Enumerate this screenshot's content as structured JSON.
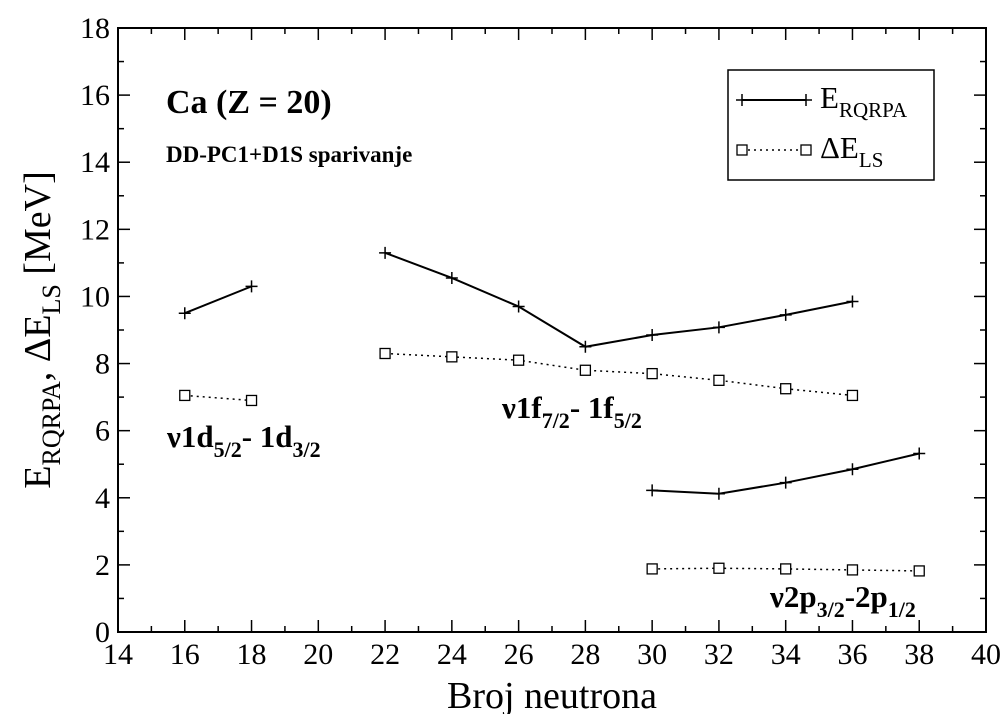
{
  "chart_data": {
    "type": "line",
    "xlabel": "Broj neutrona",
    "ylabel": {
      "E": "E",
      "rqrpa": "RQRPA",
      "sep": ", ",
      "delta": "ΔE",
      "ls": "LS",
      "unit": " [MeV]"
    },
    "xlim": [
      14,
      40
    ],
    "ylim": [
      0,
      18
    ],
    "x_ticks": [
      14,
      16,
      18,
      20,
      22,
      24,
      26,
      28,
      30,
      32,
      34,
      36,
      38,
      40
    ],
    "y_ticks": [
      0,
      2,
      4,
      6,
      8,
      10,
      12,
      14,
      16,
      18
    ],
    "grid": false,
    "legend_position": "top-right",
    "legend": [
      {
        "key": "erqrpa",
        "main": "E",
        "sub": "RQRPA",
        "style": "solid",
        "marker": "plus"
      },
      {
        "key": "dels",
        "main": "ΔE",
        "sub": "LS",
        "style": "dotted",
        "marker": "square"
      }
    ],
    "series": [
      {
        "key": "erqrpa",
        "style": "solid",
        "marker": "plus",
        "x": [
          16,
          18
        ],
        "y": [
          9.5,
          10.3
        ]
      },
      {
        "key": "erqrpa",
        "style": "solid",
        "marker": "plus",
        "x": [
          22,
          24,
          26,
          28,
          30,
          32,
          34,
          36
        ],
        "y": [
          11.3,
          10.55,
          9.7,
          8.5,
          8.85,
          9.08,
          9.45,
          9.85
        ]
      },
      {
        "key": "erqrpa",
        "style": "solid",
        "marker": "plus",
        "x": [
          30,
          32,
          34,
          36,
          38
        ],
        "y": [
          4.22,
          4.12,
          4.45,
          4.85,
          5.32
        ]
      },
      {
        "key": "dels",
        "style": "dotted",
        "marker": "square",
        "x": [
          16,
          18
        ],
        "y": [
          7.05,
          6.9
        ]
      },
      {
        "key": "dels",
        "style": "dotted",
        "marker": "square",
        "x": [
          22,
          24,
          26,
          28,
          30,
          32,
          34,
          36
        ],
        "y": [
          8.3,
          8.2,
          8.1,
          7.8,
          7.7,
          7.5,
          7.25,
          7.05
        ]
      },
      {
        "key": "dels",
        "style": "dotted",
        "marker": "square",
        "x": [
          30,
          32,
          34,
          36,
          38
        ],
        "y": [
          1.88,
          1.9,
          1.88,
          1.85,
          1.82
        ]
      }
    ],
    "annotations": {
      "title": "Ca (Z = 20)",
      "subtitle": "DD-PC1+D1S sparivanje",
      "d_label": {
        "a": "ν1d",
        "b": "5/2",
        "c": "- 1d",
        "d": "3/2"
      },
      "f_label": {
        "a": "ν1f",
        "b": "7/2",
        "c": "- 1f",
        "d": "5/2"
      },
      "p_label": {
        "a": "ν2p",
        "b": "3/2",
        "c": "-2p",
        "d": "1/2"
      }
    }
  }
}
